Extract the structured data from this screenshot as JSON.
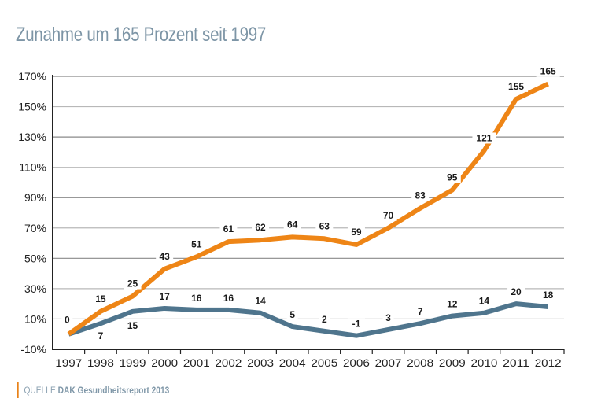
{
  "title": "Zunahme um 165 Prozent seit 1997",
  "source": {
    "prefix": "QUELLE",
    "name": "DAK Gesundheitsreport 2013"
  },
  "colors": {
    "series_orange": "#ee8516",
    "series_blue": "#4f758d",
    "title": "#7d95a6",
    "source_bar": "#e8821a"
  },
  "chart_data": {
    "type": "line",
    "title": "Zunahme um 165 Prozent seit 1997",
    "xlabel": "",
    "ylabel": "",
    "x": [
      "1997",
      "1998",
      "1999",
      "2000",
      "2001",
      "2002",
      "2003",
      "2004",
      "2005",
      "2006",
      "2007",
      "2008",
      "2009",
      "2010",
      "2011",
      "2012"
    ],
    "ylim": [
      -10,
      170
    ],
    "yticks": [
      -10,
      10,
      30,
      50,
      70,
      90,
      110,
      130,
      150,
      170
    ],
    "ytick_labels": [
      "-10%",
      "10%",
      "30%",
      "50%",
      "70%",
      "90%",
      "110%",
      "130%",
      "150%",
      "170%"
    ],
    "grid": true,
    "legend": "none",
    "series": [
      {
        "name": "orange",
        "color": "#ee8516",
        "values": [
          0,
          15,
          25,
          43,
          51,
          61,
          62,
          64,
          63,
          59,
          70,
          83,
          95,
          121,
          155,
          165
        ],
        "labels": [
          "0",
          "15",
          "25",
          "43",
          "51",
          "61",
          "62",
          "64",
          "63",
          "59",
          "70",
          "83",
          "95",
          "121",
          "155",
          "165"
        ]
      },
      {
        "name": "blue",
        "color": "#4f758d",
        "values": [
          0,
          7,
          15,
          17,
          16,
          16,
          14,
          5,
          2,
          -1,
          3,
          7,
          12,
          14,
          20,
          18
        ],
        "labels": [
          "",
          "7",
          "15",
          "17",
          "16",
          "16",
          "14",
          "5",
          "2",
          "-1",
          "3",
          "7",
          "12",
          "14",
          "20",
          "18"
        ]
      }
    ],
    "source": "QUELLE DAK Gesundheitsreport 2013"
  }
}
